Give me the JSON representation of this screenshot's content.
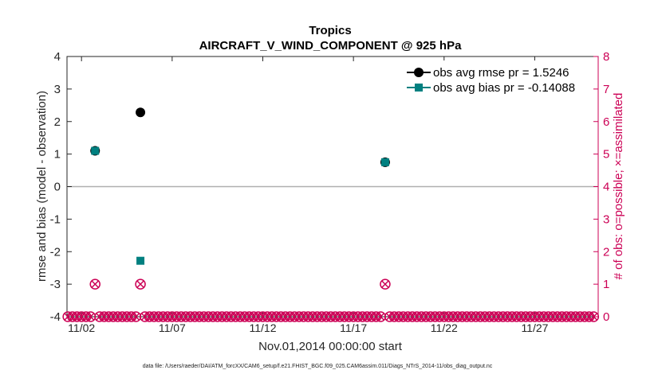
{
  "chart_data": {
    "type": "scatter",
    "title": "Tropics",
    "subtitle": "AIRCRAFT_V_WIND_COMPONENT @ 925 hPa",
    "xlabel": "Nov.01,2014 00:00:00 start",
    "ylabel": "rmse and bias (model - observation)",
    "ylabel_right": "# of obs: o=possible; ×=assimilated",
    "ylim": [
      -4,
      4
    ],
    "ylim_right": [
      0,
      8
    ],
    "xlim": [
      1.2,
      30.5
    ],
    "y_ticks": [
      "4",
      "3",
      "2",
      "1",
      "0",
      "-1",
      "-2",
      "-3",
      "-4"
    ],
    "y_right_ticks": [
      "8",
      "7",
      "6",
      "5",
      "4",
      "3",
      "2",
      "1",
      "0"
    ],
    "x_ticks": [
      {
        "day": 2,
        "label": "11/02"
      },
      {
        "day": 7,
        "label": "11/07"
      },
      {
        "day": 12,
        "label": "11/12"
      },
      {
        "day": 17,
        "label": "11/17"
      },
      {
        "day": 22,
        "label": "11/22"
      },
      {
        "day": 27,
        "label": "11/27"
      }
    ],
    "zero_line": 0,
    "series": [
      {
        "name": "rmse",
        "legend": "obs avg rmse pr = 1.5246",
        "color": "#000000",
        "marker": "circle",
        "points": [
          {
            "x": 2.75,
            "y": 1.1
          },
          {
            "x": 5.25,
            "y": 2.28
          },
          {
            "x": 18.75,
            "y": 0.75
          }
        ]
      },
      {
        "name": "bias",
        "legend": "obs avg bias pr = -0.14088",
        "color": "#008080",
        "marker": "square",
        "points": [
          {
            "x": 2.75,
            "y": 1.1
          },
          {
            "x": 5.25,
            "y": -2.28
          },
          {
            "x": 18.75,
            "y": 0.75
          }
        ]
      }
    ],
    "obs_counts": {
      "color": "#cc0055",
      "start_day": 1.25,
      "step_days": 0.25,
      "count": 117,
      "nonzero": [
        {
          "x": 2.75,
          "possible": 1,
          "assimilated": 1
        },
        {
          "x": 5.25,
          "possible": 1,
          "assimilated": 1
        },
        {
          "x": 18.75,
          "possible": 1,
          "assimilated": 1
        }
      ]
    },
    "legend_position": "top-right"
  },
  "footer": "data file: /Users/raeder/DAI/ATM_forcXX/CAM6_setup/f.e21.FHIST_BGC.f09_025.CAM6assim.011/Diags_NTrS_2014-11/obs_diag_output.nc"
}
